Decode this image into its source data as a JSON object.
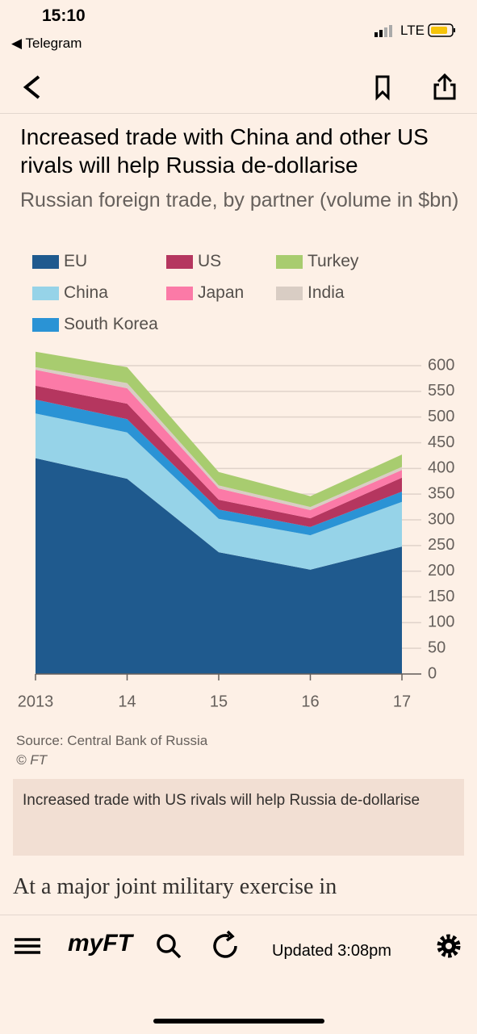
{
  "status_bar": {
    "time": "15:10",
    "back_app": "Telegram",
    "network": "LTE"
  },
  "chart_data": {
    "type": "stacked_area",
    "title": "Increased trade with China and other US rivals will help Russia de-dollarise",
    "subtitle": "Russian foreign trade, by partner (volume in $bn)",
    "categories": [
      "2013",
      "14",
      "15",
      "16",
      "17"
    ],
    "series": [
      {
        "name": "EU",
        "color": "#1f5a8e",
        "values": [
          420,
          380,
          237,
          203,
          248
        ]
      },
      {
        "name": "China",
        "color": "#96d3e8",
        "values": [
          87,
          90,
          65,
          67,
          87
        ]
      },
      {
        "name": "South Korea",
        "color": "#2a93d5",
        "values": [
          27,
          26,
          18,
          16,
          20
        ]
      },
      {
        "name": "US",
        "color": "#b5365f",
        "values": [
          27,
          30,
          19,
          17,
          27
        ]
      },
      {
        "name": "Japan",
        "color": "#fb7aa7",
        "values": [
          31,
          30,
          22,
          16,
          15
        ]
      },
      {
        "name": "India",
        "color": "#d9cdc4",
        "values": [
          5,
          10,
          6,
          6,
          6
        ]
      },
      {
        "name": "Turkey",
        "color": "#a8cc6f",
        "values": [
          30,
          31,
          26,
          21,
          24
        ]
      }
    ],
    "ylim": [
      0,
      600
    ],
    "yticks": [
      0,
      50,
      100,
      150,
      200,
      250,
      300,
      350,
      400,
      450,
      500,
      550,
      600
    ],
    "grid": true,
    "source": "Source: Central Bank of Russia",
    "credit": "© FT"
  },
  "caption": "Increased trade with US rivals will help Russia de-dollarise",
  "article": {
    "first_line": "At a major joint military exercise in"
  },
  "bottom_bar": {
    "logo": "myFT",
    "updated": "Updated 3:08pm"
  }
}
